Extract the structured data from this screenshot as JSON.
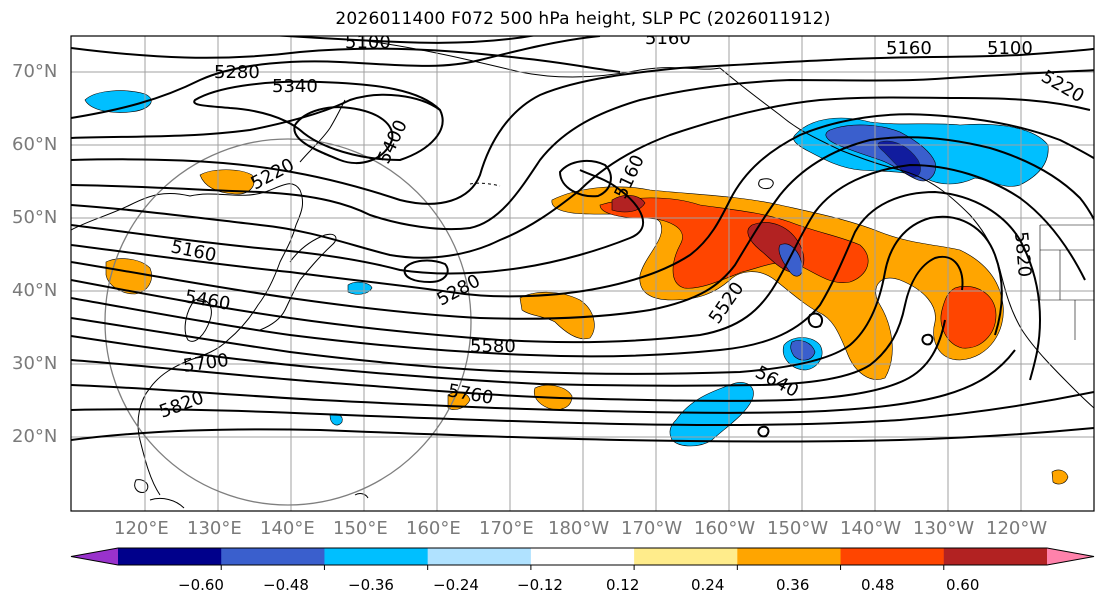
{
  "title": "2026011400 F072 500 hPa height, SLP PC (2026011912)",
  "lat_labels": [
    "70°N",
    "60°N",
    "50°N",
    "40°N",
    "30°N",
    "20°N"
  ],
  "lon_labels": [
    "120°E",
    "130°E",
    "140°E",
    "150°E",
    "160°E",
    "170°E",
    "180°W",
    "170°W",
    "160°W",
    "150°W",
    "140°W",
    "130°W",
    "120°W"
  ],
  "contour_labels": [
    "5100",
    "5160",
    "5160",
    "5100",
    "5220",
    "5280",
    "5340",
    "5400",
    "5220",
    "5160",
    "5160",
    "5460",
    "5280",
    "5520",
    "5580",
    "5640",
    "5700",
    "5760",
    "5820",
    "5820"
  ],
  "colorbar": {
    "colors": [
      "#9932cc",
      "#00008b",
      "#3a5fcd",
      "#00bfff",
      "#b0e2ff",
      "#ffffff",
      "#ffec8b",
      "#ffa500",
      "#ff4500",
      "#b22222",
      "#ff82ab"
    ],
    "tick_labels": [
      "−0.60",
      "−0.48",
      "−0.36",
      "−0.24",
      "−0.12",
      "0.12",
      "0.24",
      "0.36",
      "0.48",
      "0.60"
    ]
  }
}
